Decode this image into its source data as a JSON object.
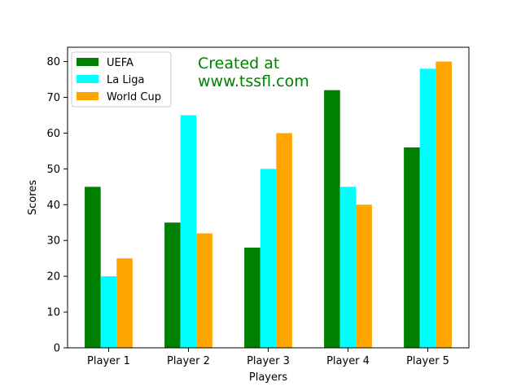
{
  "chart_data": {
    "type": "bar",
    "title": "",
    "xlabel": "Players",
    "ylabel": "Scores",
    "categories": [
      "Player 1",
      "Player 2",
      "Player 3",
      "Player 4",
      "Player 5"
    ],
    "series": [
      {
        "name": "UEFA",
        "color": "#008000",
        "values": [
          45,
          35,
          28,
          72,
          56
        ]
      },
      {
        "name": "La Liga",
        "color": "#00ffff",
        "values": [
          20,
          65,
          50,
          45,
          78
        ]
      },
      {
        "name": "World Cup",
        "color": "#ffa500",
        "values": [
          25,
          32,
          60,
          40,
          80
        ]
      }
    ],
    "ylim": [
      0,
      84
    ],
    "yticks": [
      0,
      10,
      20,
      30,
      40,
      50,
      60,
      70,
      80
    ],
    "grid": false,
    "legend_position": "top-left",
    "annotation": {
      "lines": [
        "Created at",
        "www.tssfl.com"
      ],
      "color": "#008000"
    }
  }
}
